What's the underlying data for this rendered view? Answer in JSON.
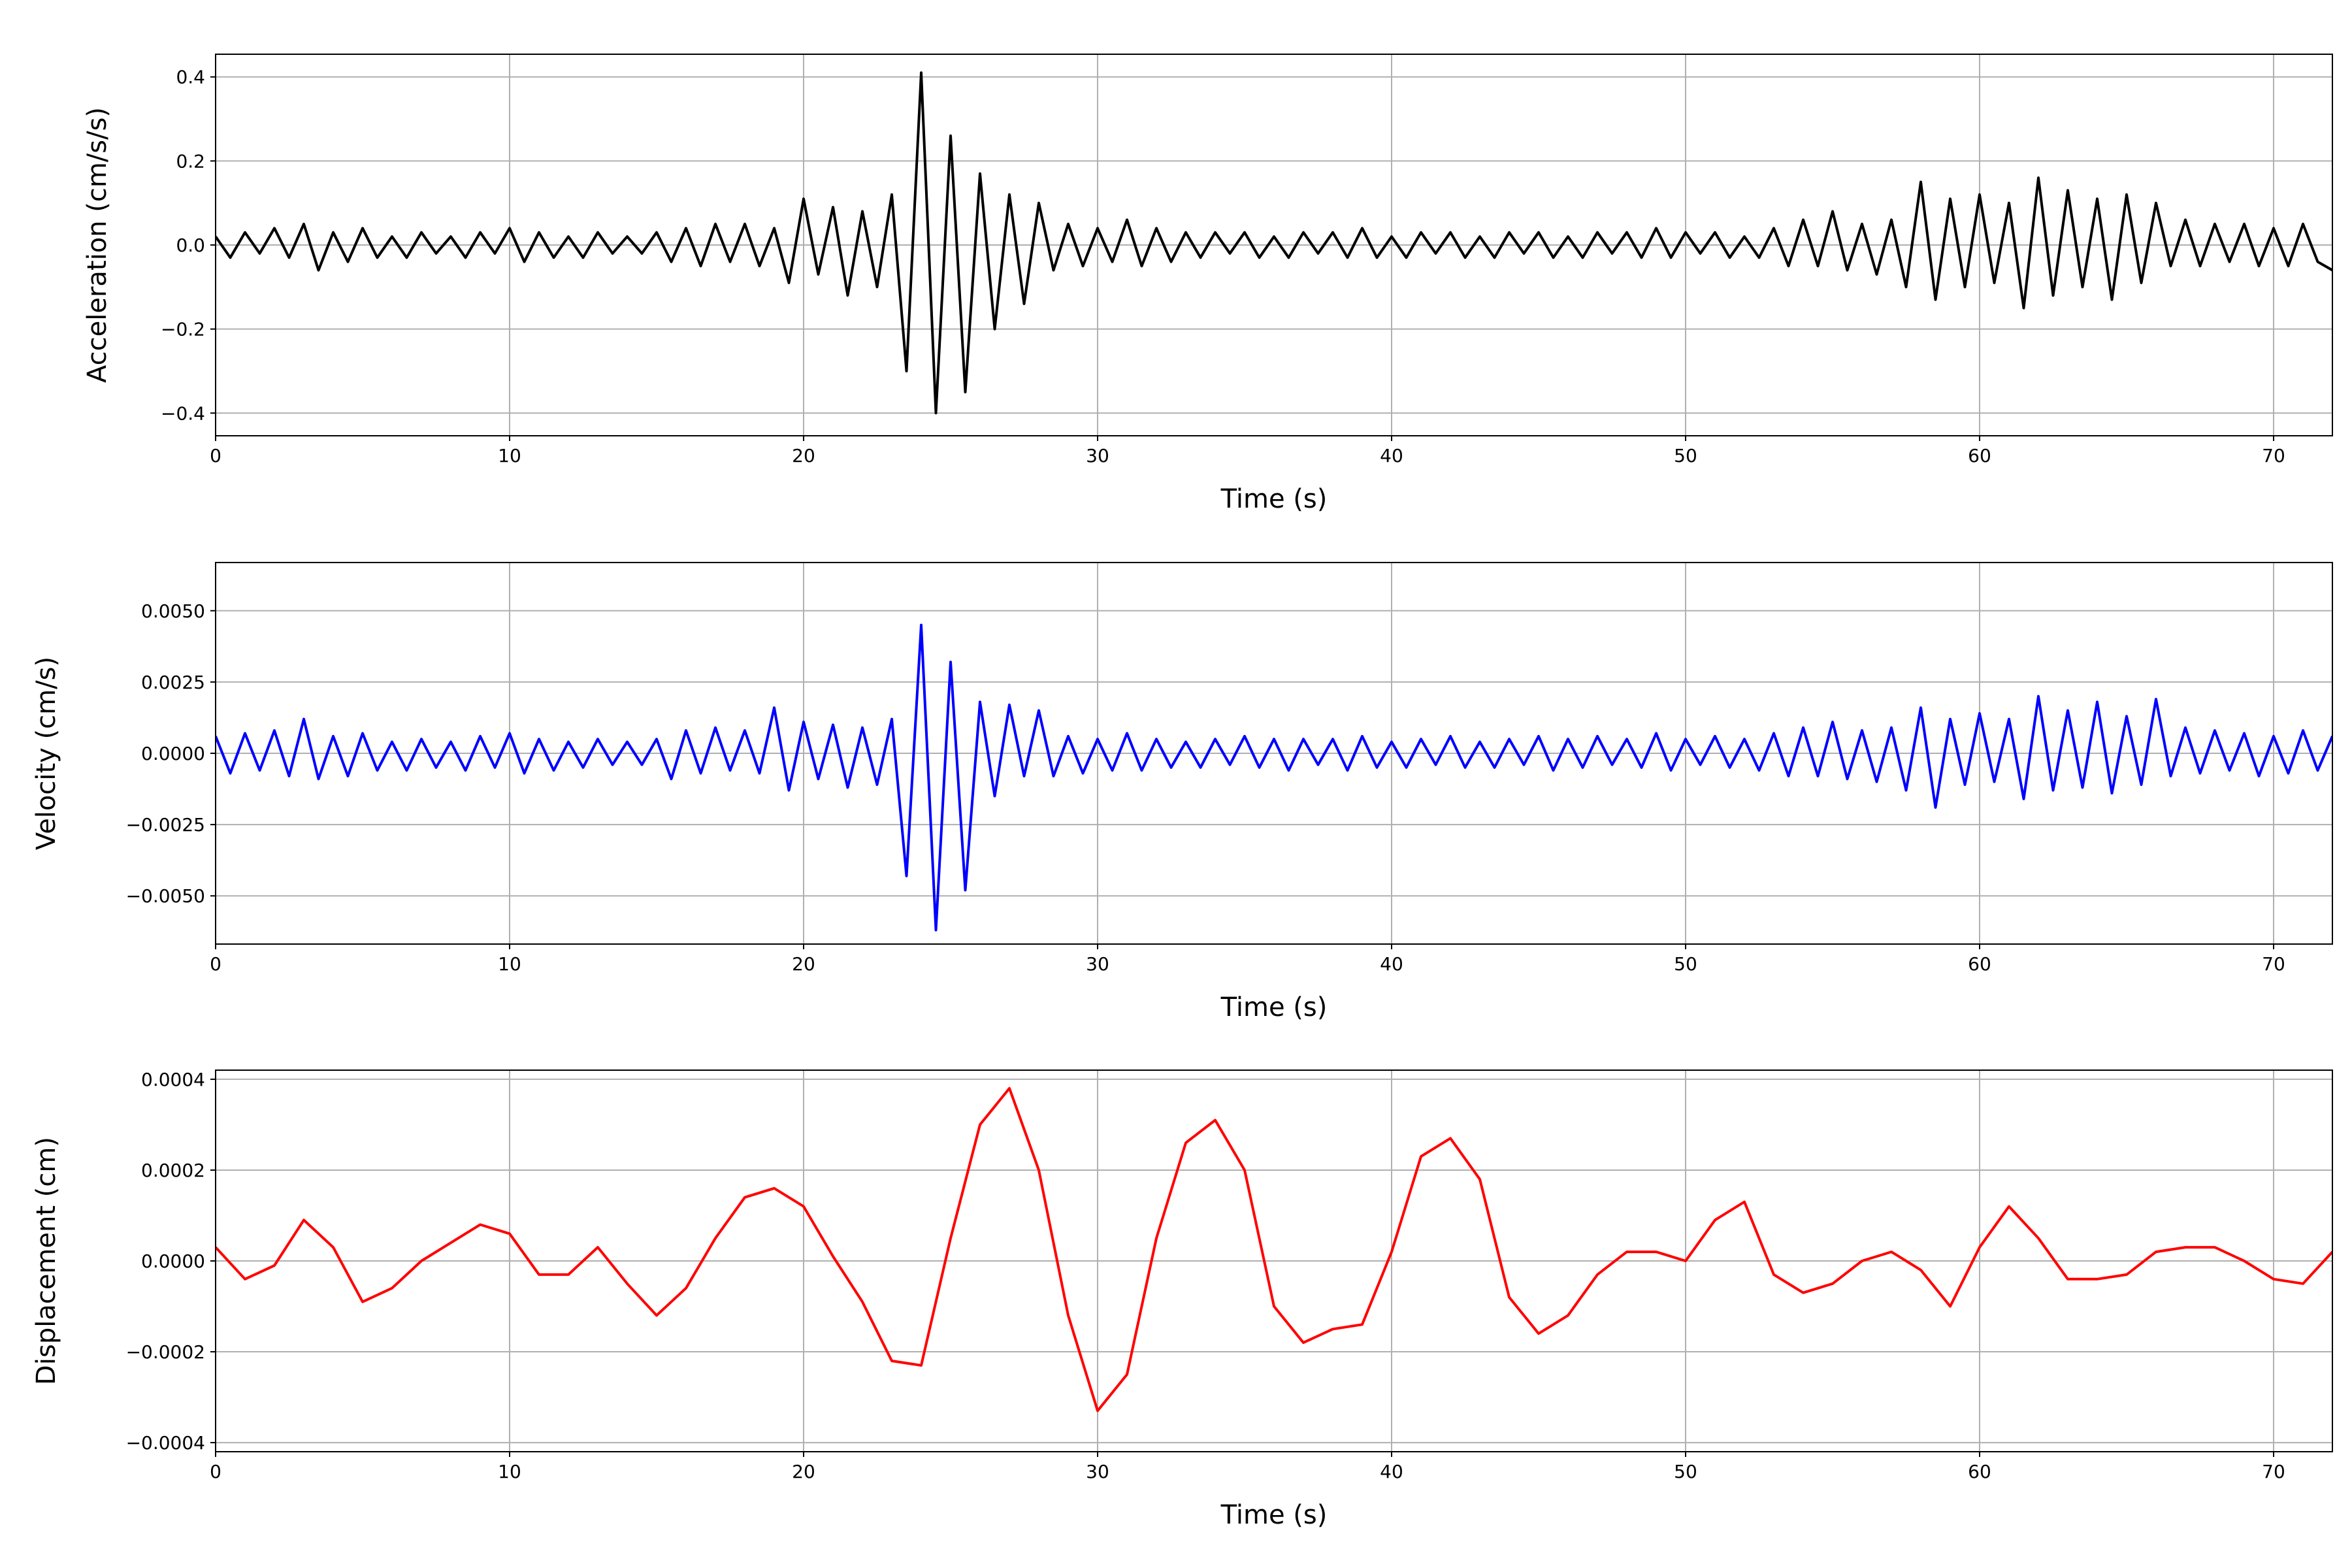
{
  "chart_data": [
    {
      "type": "line",
      "ylabel": "Acceleration (cm/s/s)",
      "xlabel": "Time (s)",
      "color": "#000000",
      "grid": true,
      "xlim": [
        0,
        72
      ],
      "xticks": [
        0,
        10,
        20,
        30,
        40,
        50,
        60,
        70
      ],
      "ylim": [
        -0.454,
        0.454
      ],
      "yticks": [
        {
          "value": -0.4,
          "label": "−0.4"
        },
        {
          "value": -0.2,
          "label": "−0.2"
        },
        {
          "value": 0,
          "label": "0.0"
        },
        0.2,
        0.4
      ],
      "x": [
        0,
        0.5,
        1,
        1.5,
        2,
        2.5,
        3,
        3.5,
        4,
        4.5,
        5,
        5.5,
        6,
        6.5,
        7,
        7.5,
        8,
        8.5,
        9,
        9.5,
        10,
        10.5,
        11,
        11.5,
        12,
        12.5,
        13,
        13.5,
        14,
        14.5,
        15,
        15.5,
        16,
        16.5,
        17,
        17.5,
        18,
        18.5,
        19,
        19.5,
        20,
        20.5,
        21,
        21.5,
        22,
        22.5,
        23,
        23.5,
        24,
        24.5,
        25,
        25.5,
        26,
        26.5,
        27,
        27.5,
        28,
        28.5,
        29,
        29.5,
        30,
        30.5,
        31,
        31.5,
        32,
        32.5,
        33,
        33.5,
        34,
        34.5,
        35,
        35.5,
        36,
        36.5,
        37,
        37.5,
        38,
        38.5,
        39,
        39.5,
        40,
        40.5,
        41,
        41.5,
        42,
        42.5,
        43,
        43.5,
        44,
        44.5,
        45,
        45.5,
        46,
        46.5,
        47,
        47.5,
        48,
        48.5,
        49,
        49.5,
        50,
        50.5,
        51,
        51.5,
        52,
        52.5,
        53,
        53.5,
        54,
        54.5,
        55,
        55.5,
        56,
        56.5,
        57,
        57.5,
        58,
        58.5,
        59,
        59.5,
        60,
        60.5,
        61,
        61.5,
        62,
        62.5,
        63,
        63.5,
        64,
        64.5,
        65,
        65.5,
        66,
        66.5,
        67,
        67.5,
        68,
        68.5,
        69,
        69.5,
        70,
        70.5,
        71,
        71.5,
        72
      ],
      "values": [
        0.02,
        -0.03,
        0.03,
        -0.02,
        0.04,
        -0.03,
        0.05,
        -0.06,
        0.03,
        -0.04,
        0.04,
        -0.03,
        0.02,
        -0.03,
        0.03,
        -0.02,
        0.02,
        -0.03,
        0.03,
        -0.02,
        0.04,
        -0.04,
        0.03,
        -0.03,
        0.02,
        -0.03,
        0.03,
        -0.02,
        0.02,
        -0.02,
        0.03,
        -0.04,
        0.04,
        -0.05,
        0.05,
        -0.04,
        0.05,
        -0.05,
        0.04,
        -0.09,
        0.11,
        -0.07,
        0.09,
        -0.12,
        0.08,
        -0.1,
        0.12,
        -0.3,
        0.41,
        -0.4,
        0.26,
        -0.35,
        0.17,
        -0.2,
        0.12,
        -0.14,
        0.1,
        -0.06,
        0.05,
        -0.05,
        0.04,
        -0.04,
        0.06,
        -0.05,
        0.04,
        -0.04,
        0.03,
        -0.03,
        0.03,
        -0.02,
        0.03,
        -0.03,
        0.02,
        -0.03,
        0.03,
        -0.02,
        0.03,
        -0.03,
        0.04,
        -0.03,
        0.02,
        -0.03,
        0.03,
        -0.02,
        0.03,
        -0.03,
        0.02,
        -0.03,
        0.03,
        -0.02,
        0.03,
        -0.03,
        0.02,
        -0.03,
        0.03,
        -0.02,
        0.03,
        -0.03,
        0.04,
        -0.03,
        0.03,
        -0.02,
        0.03,
        -0.03,
        0.02,
        -0.03,
        0.04,
        -0.05,
        0.06,
        -0.05,
        0.08,
        -0.06,
        0.05,
        -0.07,
        0.06,
        -0.1,
        0.15,
        -0.13,
        0.11,
        -0.1,
        0.12,
        -0.09,
        0.1,
        -0.15,
        0.16,
        -0.12,
        0.13,
        -0.1,
        0.11,
        -0.13,
        0.12,
        -0.09,
        0.1,
        -0.05,
        0.06,
        -0.05,
        0.05,
        -0.04,
        0.05,
        -0.05,
        0.04,
        -0.05,
        0.05,
        -0.04,
        -0.06
      ]
    },
    {
      "type": "line",
      "ylabel": "Velocity (cm/s)",
      "xlabel": "Time (s)",
      "color": "#0000ff",
      "grid": true,
      "xlim": [
        0,
        72
      ],
      "xticks": [
        0,
        10,
        20,
        30,
        40,
        50,
        60,
        70
      ],
      "ylim": [
        -0.00669,
        0.00669
      ],
      "yticks": [
        {
          "value": -0.005,
          "label": "−0.0050"
        },
        {
          "value": -0.0025,
          "label": "−0.0025"
        },
        {
          "value": 0,
          "label": "0.0000"
        },
        {
          "value": 0.0025,
          "label": "0.0025"
        },
        {
          "value": 0.005,
          "label": "0.0050"
        }
      ],
      "x": [
        0,
        0.5,
        1,
        1.5,
        2,
        2.5,
        3,
        3.5,
        4,
        4.5,
        5,
        5.5,
        6,
        6.5,
        7,
        7.5,
        8,
        8.5,
        9,
        9.5,
        10,
        10.5,
        11,
        11.5,
        12,
        12.5,
        13,
        13.5,
        14,
        14.5,
        15,
        15.5,
        16,
        16.5,
        17,
        17.5,
        18,
        18.5,
        19,
        19.5,
        20,
        20.5,
        21,
        21.5,
        22,
        22.5,
        23,
        23.5,
        24,
        24.5,
        25,
        25.5,
        26,
        26.5,
        27,
        27.5,
        28,
        28.5,
        29,
        29.5,
        30,
        30.5,
        31,
        31.5,
        32,
        32.5,
        33,
        33.5,
        34,
        34.5,
        35,
        35.5,
        36,
        36.5,
        37,
        37.5,
        38,
        38.5,
        39,
        39.5,
        40,
        40.5,
        41,
        41.5,
        42,
        42.5,
        43,
        43.5,
        44,
        44.5,
        45,
        45.5,
        46,
        46.5,
        47,
        47.5,
        48,
        48.5,
        49,
        49.5,
        50,
        50.5,
        51,
        51.5,
        52,
        52.5,
        53,
        53.5,
        54,
        54.5,
        55,
        55.5,
        56,
        56.5,
        57,
        57.5,
        58,
        58.5,
        59,
        59.5,
        60,
        60.5,
        61,
        61.5,
        62,
        62.5,
        63,
        63.5,
        64,
        64.5,
        65,
        65.5,
        66,
        66.5,
        67,
        67.5,
        68,
        68.5,
        69,
        69.5,
        70,
        70.5,
        71,
        71.5,
        72
      ],
      "values": [
        0.0006,
        -0.0007,
        0.0007,
        -0.0006,
        0.0008,
        -0.0008,
        0.0012,
        -0.0009,
        0.0006,
        -0.0008,
        0.0007,
        -0.0006,
        0.0004,
        -0.0006,
        0.0005,
        -0.0005,
        0.0004,
        -0.0006,
        0.0006,
        -0.0005,
        0.0007,
        -0.0007,
        0.0005,
        -0.0006,
        0.0004,
        -0.0005,
        0.0005,
        -0.0004,
        0.0004,
        -0.0004,
        0.0005,
        -0.0009,
        0.0008,
        -0.0007,
        0.0009,
        -0.0006,
        0.0008,
        -0.0007,
        0.0016,
        -0.0013,
        0.0011,
        -0.0009,
        0.001,
        -0.0012,
        0.0009,
        -0.0011,
        0.0012,
        -0.0043,
        0.0045,
        -0.0062,
        0.0032,
        -0.0048,
        0.0018,
        -0.0015,
        0.0017,
        -0.0008,
        0.0015,
        -0.0008,
        0.0006,
        -0.0007,
        0.0005,
        -0.0006,
        0.0007,
        -0.0006,
        0.0005,
        -0.0005,
        0.0004,
        -0.0005,
        0.0005,
        -0.0004,
        0.0006,
        -0.0005,
        0.0005,
        -0.0006,
        0.0005,
        -0.0004,
        0.0005,
        -0.0006,
        0.0006,
        -0.0005,
        0.0004,
        -0.0005,
        0.0005,
        -0.0004,
        0.0006,
        -0.0005,
        0.0004,
        -0.0005,
        0.0005,
        -0.0004,
        0.0006,
        -0.0006,
        0.0005,
        -0.0005,
        0.0006,
        -0.0004,
        0.0005,
        -0.0005,
        0.0007,
        -0.0006,
        0.0005,
        -0.0004,
        0.0006,
        -0.0005,
        0.0005,
        -0.0006,
        0.0007,
        -0.0008,
        0.0009,
        -0.0008,
        0.0011,
        -0.0009,
        0.0008,
        -0.001,
        0.0009,
        -0.0013,
        0.0016,
        -0.0019,
        0.0012,
        -0.0011,
        0.0014,
        -0.001,
        0.0012,
        -0.0016,
        0.002,
        -0.0013,
        0.0015,
        -0.0012,
        0.0018,
        -0.0014,
        0.0013,
        -0.0011,
        0.0019,
        -0.0008,
        0.0009,
        -0.0007,
        0.0008,
        -0.0006,
        0.0007,
        -0.0008,
        0.0006,
        -0.0007,
        0.0008,
        -0.0006,
        0.0006
      ]
    },
    {
      "type": "line",
      "ylabel": "Displacement (cm)",
      "xlabel": "Time (s)",
      "color": "#ff0000",
      "grid": true,
      "xlim": [
        0,
        72
      ],
      "xticks": [
        0,
        10,
        20,
        30,
        40,
        50,
        60,
        70
      ],
      "ylim": [
        -0.00042,
        0.00042
      ],
      "yticks": [
        {
          "value": -0.0004,
          "label": "−0.0004"
        },
        {
          "value": -0.0002,
          "label": "−0.0002"
        },
        {
          "value": 0,
          "label": "0.0000"
        },
        {
          "value": 0.0002,
          "label": "0.0002"
        },
        {
          "value": 0.0004,
          "label": "0.0004"
        }
      ],
      "x": [
        0,
        1,
        2,
        3,
        4,
        5,
        6,
        7,
        8,
        9,
        10,
        11,
        12,
        13,
        14,
        15,
        16,
        17,
        18,
        19,
        20,
        21,
        22,
        23,
        24,
        25,
        26,
        27,
        28,
        29,
        30,
        31,
        32,
        33,
        34,
        35,
        36,
        37,
        38,
        39,
        40,
        41,
        42,
        43,
        44,
        45,
        46,
        47,
        48,
        49,
        50,
        51,
        52,
        53,
        54,
        55,
        56,
        57,
        58,
        59,
        60,
        61,
        62,
        63,
        64,
        65,
        66,
        67,
        68,
        69,
        70,
        71,
        72
      ],
      "values": [
        3e-05,
        -4e-05,
        -1e-05,
        9e-05,
        3e-05,
        -9e-05,
        -6e-05,
        0.0,
        4e-05,
        8e-05,
        6e-05,
        -3e-05,
        -3e-05,
        3e-05,
        -5e-05,
        -0.00012,
        -6e-05,
        5e-05,
        0.00014,
        0.00016,
        0.00012,
        1e-05,
        -9e-05,
        -0.00022,
        -0.00023,
        5e-05,
        0.0003,
        0.00038,
        0.0002,
        -0.00012,
        -0.00033,
        -0.00025,
        5e-05,
        0.00026,
        0.00031,
        0.0002,
        -0.0001,
        -0.00018,
        -0.00015,
        -0.00014,
        2e-05,
        0.00023,
        0.00027,
        0.00018,
        -8e-05,
        -0.00016,
        -0.00012,
        -3e-05,
        2e-05,
        2e-05,
        0.0,
        9e-05,
        0.00013,
        -3e-05,
        -7e-05,
        -5e-05,
        0.0,
        2e-05,
        -2e-05,
        -0.0001,
        3e-05,
        0.00012,
        5e-05,
        -4e-05,
        -4e-05,
        -3e-05,
        2e-05,
        3e-05,
        3e-05,
        0.0,
        -4e-05,
        -5e-05,
        2e-05
      ]
    }
  ]
}
